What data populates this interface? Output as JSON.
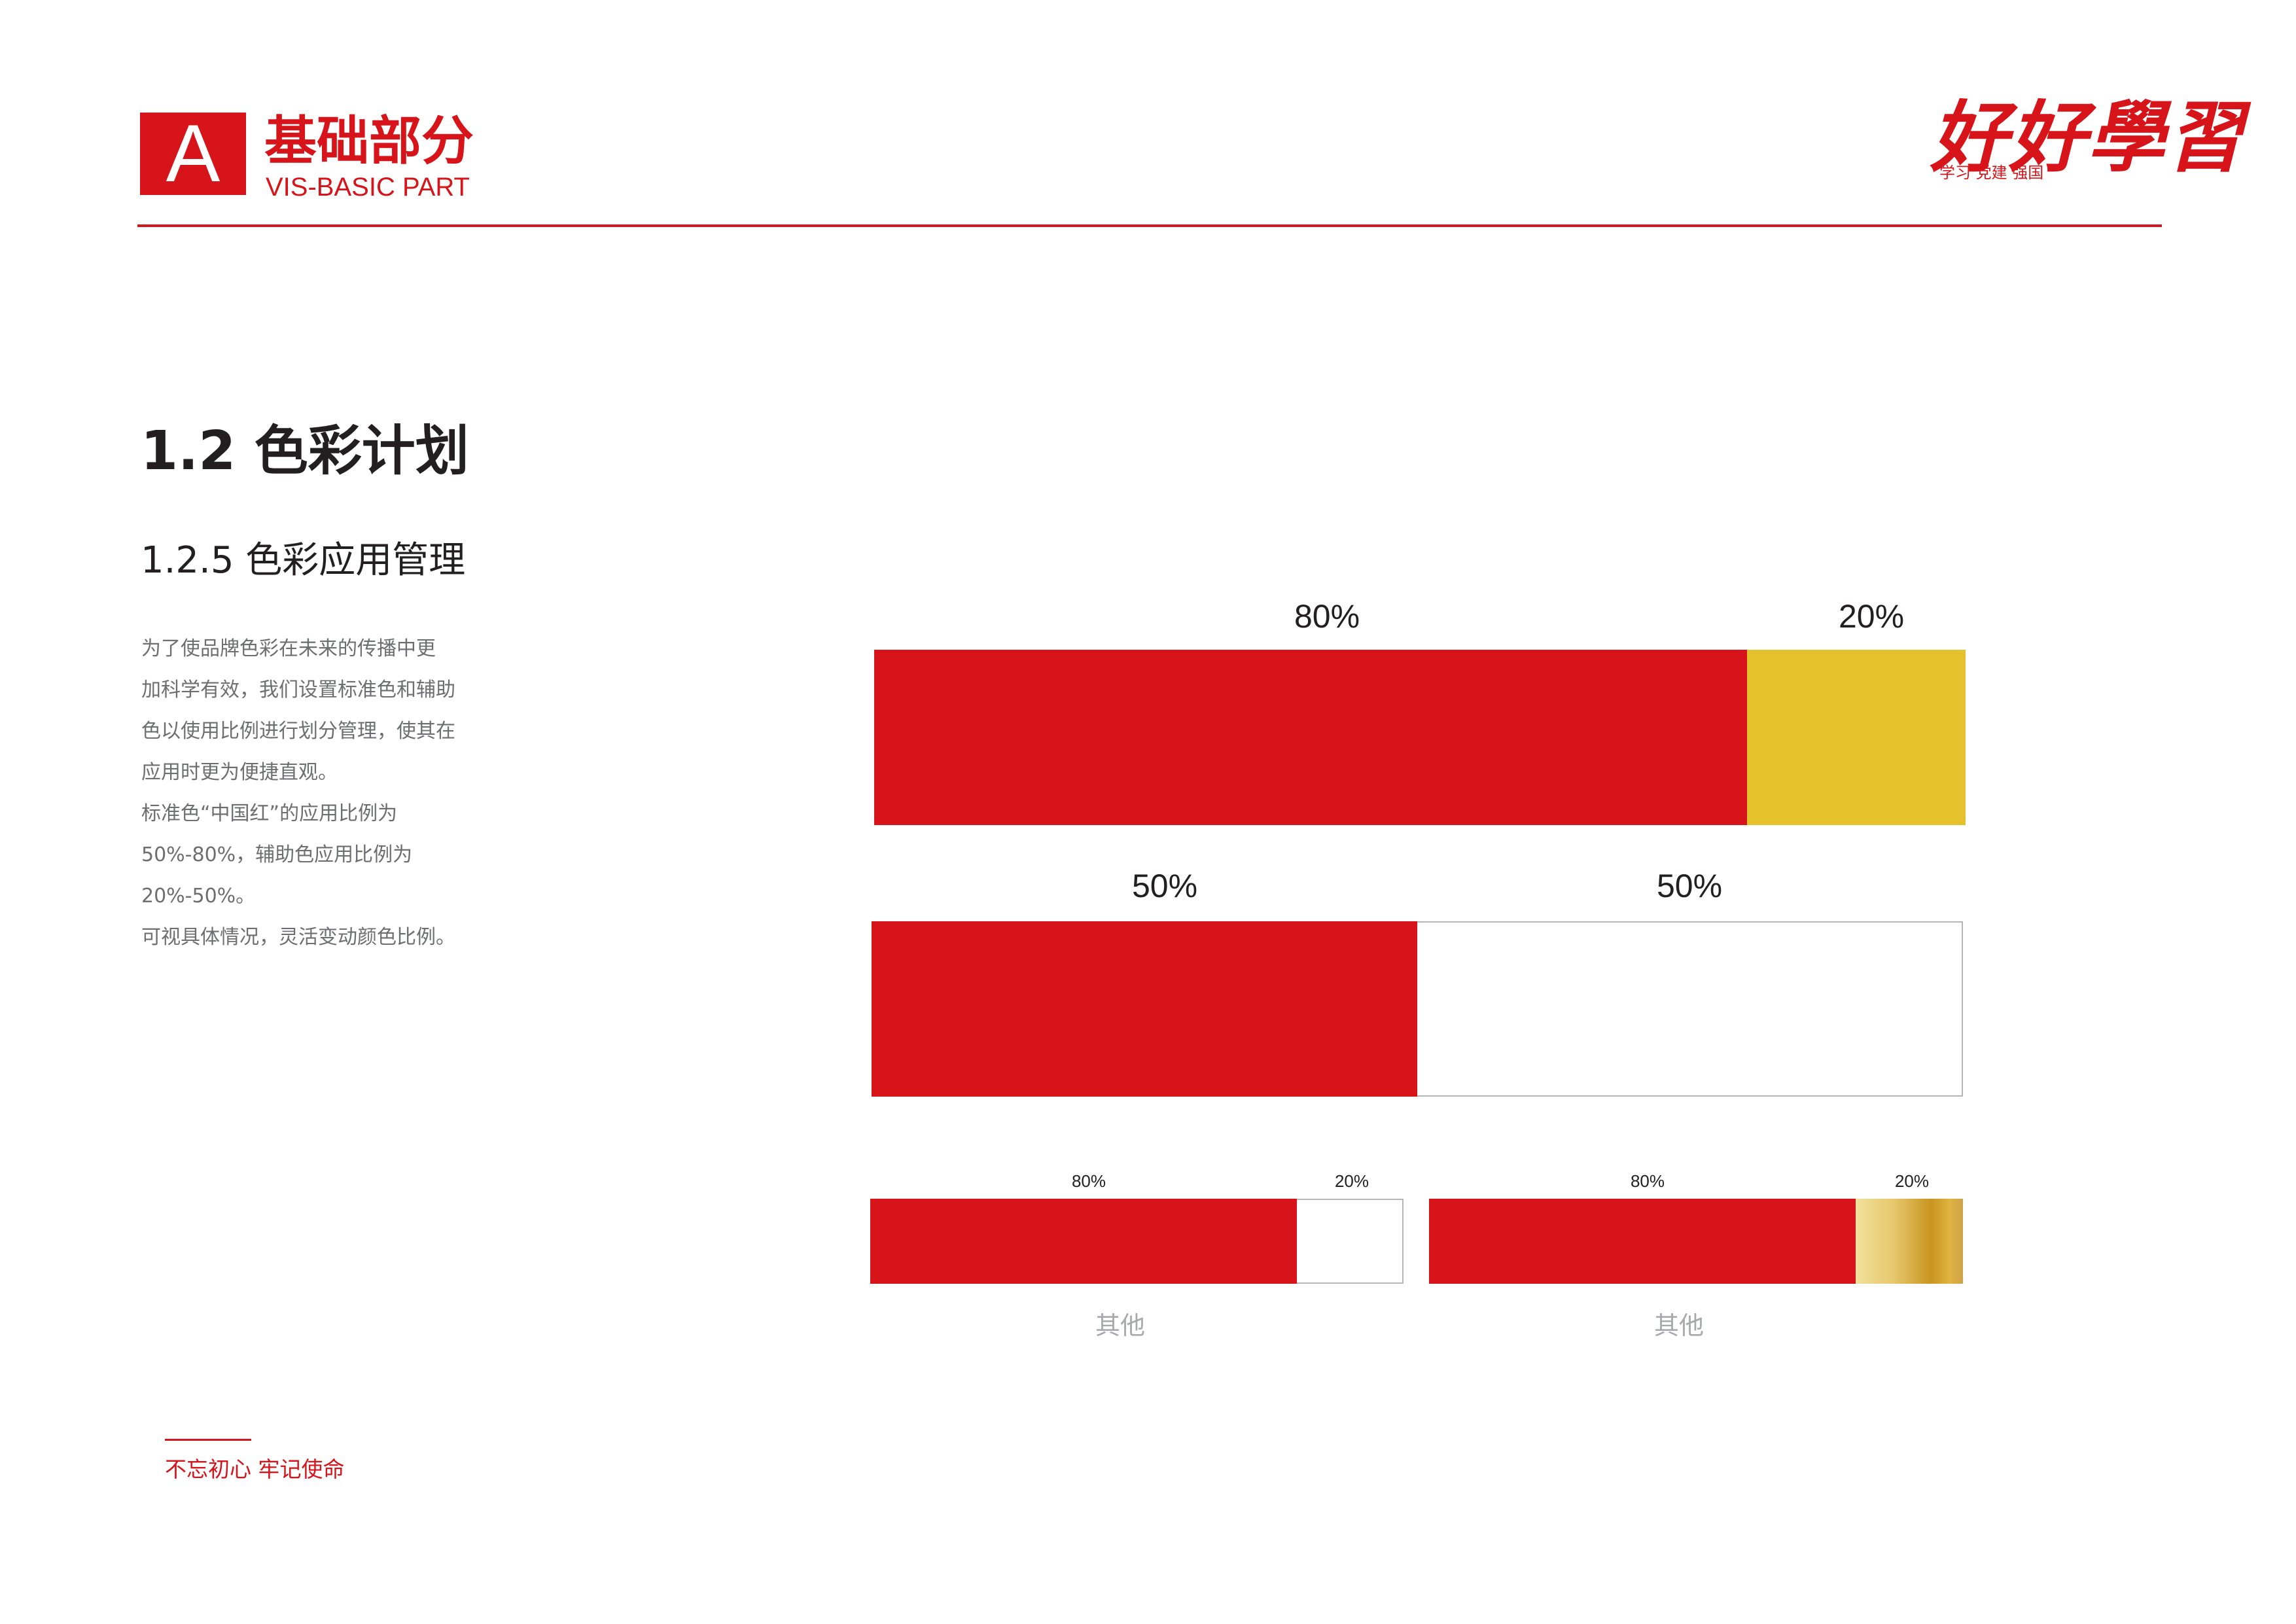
{
  "header": {
    "badge_letter": "A",
    "title": "基础部分",
    "subtitle": "VIS-BASIC PART",
    "logo_text": "好好學習",
    "logo_tagline": "学习 党建 强国"
  },
  "section": {
    "title": "1.2 色彩计划",
    "subtitle": "1.2.5 色彩应用管理",
    "paragraph_lines": [
      "为了使品牌色彩在未来的传播中更",
      "加科学有效，我们设置标准色和辅助",
      "色以使用比例进行划分管理，使其在",
      "应用时更为便捷直观。",
      "标准色“中国红”的应用比例为",
      "50%-80%，辅助色应用比例为",
      "20%-50%。",
      "可视具体情况，灵活变动颜色比例。"
    ]
  },
  "colors": {
    "china_red": "#d7141a",
    "gold": "#e6c12e",
    "white": "#ffffff"
  },
  "ratios": [
    {
      "segments": [
        {
          "label": "80%",
          "color": "china-red"
        },
        {
          "label": "20%",
          "color": "gold"
        }
      ]
    },
    {
      "segments": [
        {
          "label": "50%",
          "color": "china-red"
        },
        {
          "label": "50%",
          "color": "white"
        }
      ]
    },
    {
      "segments": [
        {
          "label": "80%",
          "color": "china-red"
        },
        {
          "label": "20%",
          "color": "white"
        }
      ],
      "caption": "其他"
    },
    {
      "segments": [
        {
          "label": "80%",
          "color": "china-red"
        },
        {
          "label": "20%",
          "color": "gold-gradient"
        }
      ],
      "caption": "其他"
    }
  ],
  "footer": {
    "slogan": "不忘初心 牢记使命"
  }
}
